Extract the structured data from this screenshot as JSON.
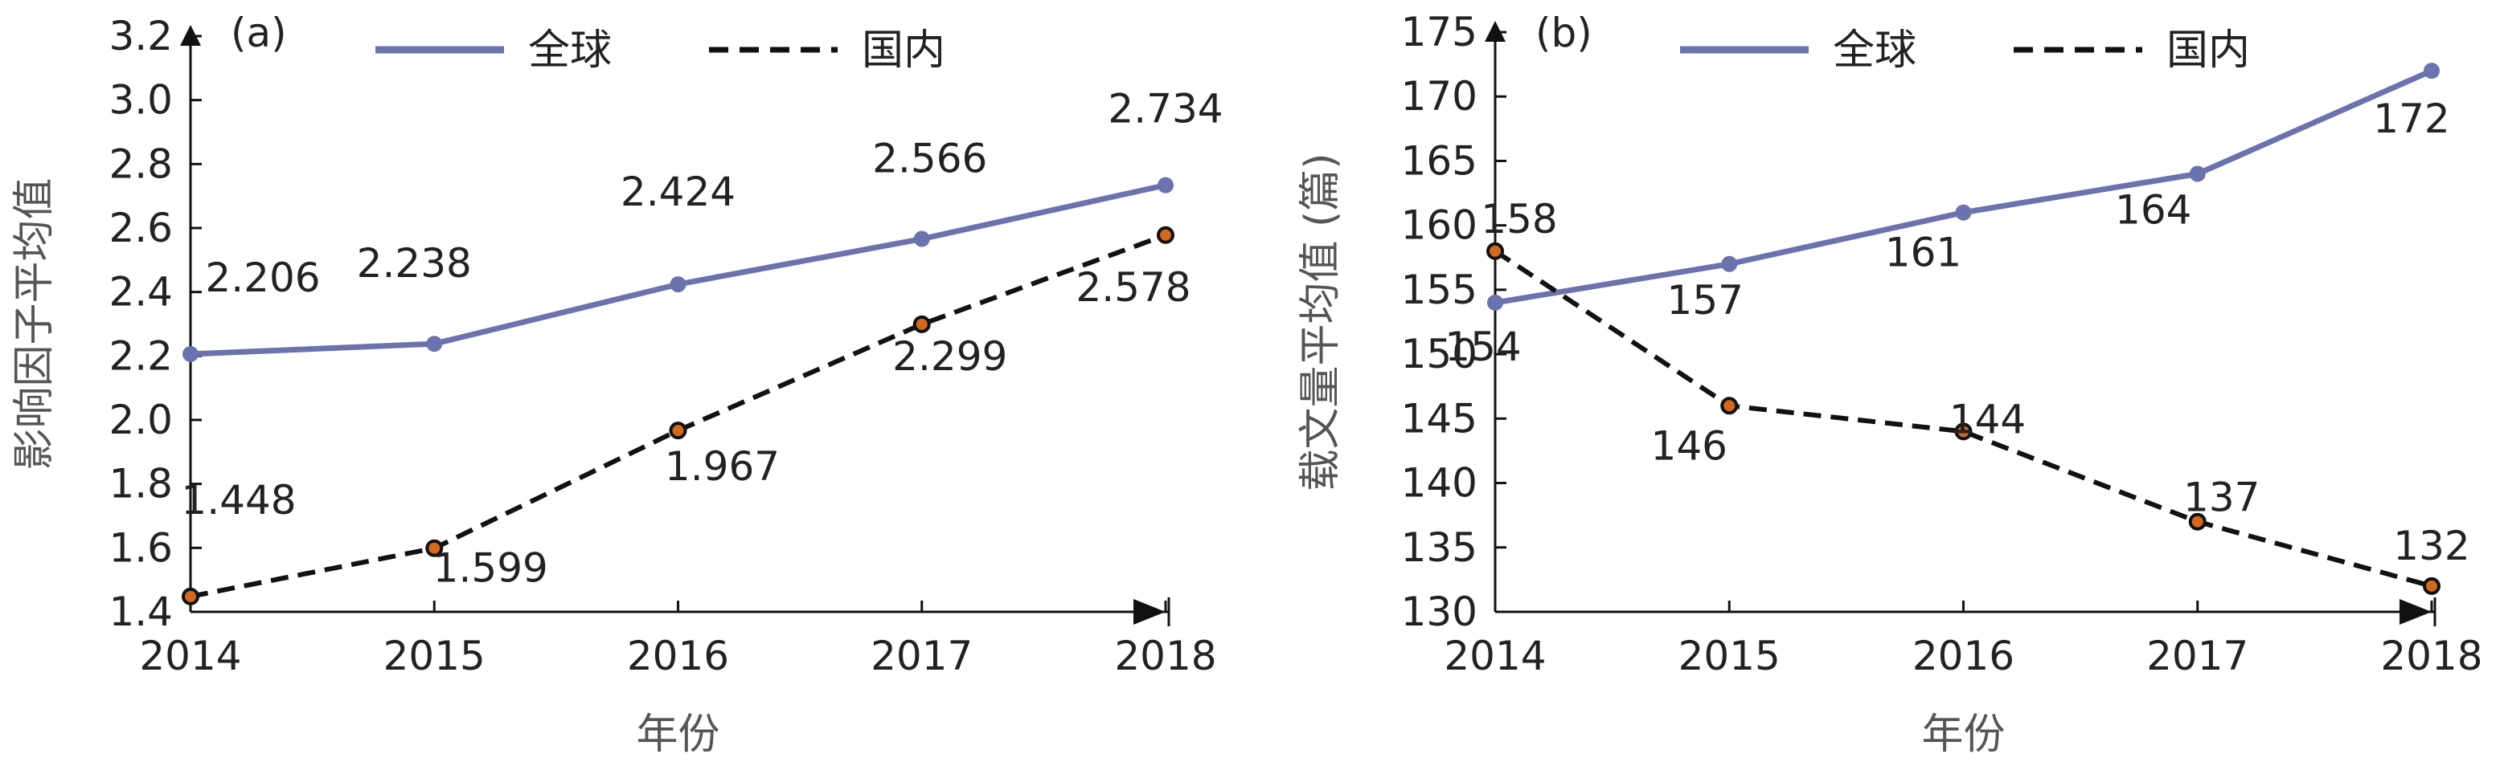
{
  "chart_data": [
    {
      "type": "line",
      "panel_label": "(a)",
      "xlabel": "年份",
      "ylabel": "影响因子平均值",
      "categories": [
        "2014",
        "2015",
        "2016",
        "2017",
        "2018"
      ],
      "ylim": [
        1.4,
        3.2
      ],
      "yticks": [
        "1.4",
        "1.6",
        "1.8",
        "2.0",
        "2.2",
        "2.4",
        "2.6",
        "2.8",
        "3.0",
        "3.2"
      ],
      "legend_position": "top",
      "grid": false,
      "series": [
        {
          "name": "全球",
          "style": "solid",
          "color": "#6a73ad",
          "values": [
            2.206,
            2.238,
            2.424,
            2.566,
            2.734
          ],
          "labels": [
            "2.206",
            "2.238",
            "2.424",
            "2.566",
            "2.734"
          ]
        },
        {
          "name": "国内",
          "style": "dashed",
          "color": "#111111",
          "marker_color": "#d2691e",
          "values": [
            1.448,
            1.599,
            1.967,
            2.299,
            2.578
          ],
          "labels": [
            "1.448",
            "1.599",
            "1.967",
            "2.299",
            "2.578"
          ]
        }
      ]
    },
    {
      "type": "line",
      "panel_label": "(b)",
      "xlabel": "年份",
      "ylabel": "载文量平均值 (篇)",
      "categories": [
        "2014",
        "2015",
        "2016",
        "2017",
        "2018"
      ],
      "ylim": [
        130,
        175
      ],
      "yticks": [
        "130",
        "135",
        "140",
        "145",
        "150",
        "155",
        "160",
        "165",
        "170",
        "175"
      ],
      "legend_position": "top",
      "grid": false,
      "series": [
        {
          "name": "全球",
          "style": "solid",
          "color": "#6a73ad",
          "values": [
            154,
            157,
            161,
            164,
            172
          ],
          "labels": [
            "154",
            "157",
            "161",
            "164",
            "172"
          ]
        },
        {
          "name": "国内",
          "style": "dashed",
          "color": "#111111",
          "marker_color": "#d2691e",
          "values": [
            158,
            146,
            144,
            137,
            132
          ],
          "labels": [
            "158",
            "146",
            "144",
            "137",
            "132"
          ]
        }
      ]
    }
  ]
}
